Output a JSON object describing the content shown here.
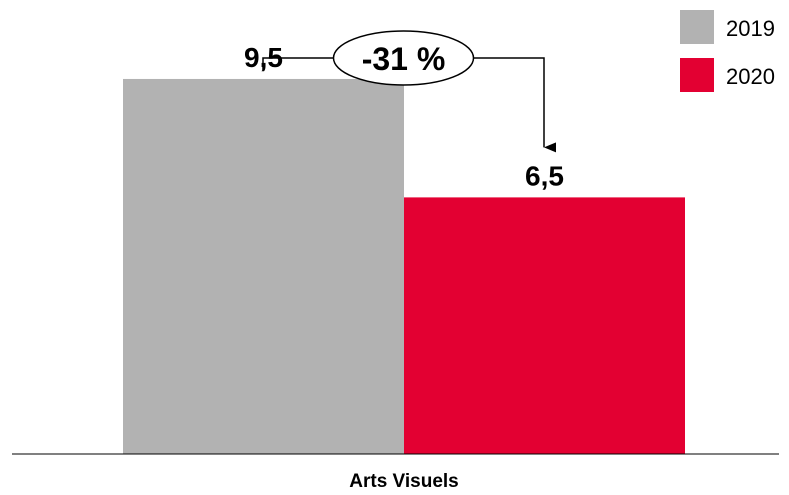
{
  "chart_data": {
    "type": "bar",
    "categories": [
      "Arts Visuels"
    ],
    "series": [
      {
        "name": "2019",
        "values": [
          9.5
        ],
        "value_label": "9,5",
        "color": "#b2b2b2"
      },
      {
        "name": "2020",
        "values": [
          6.5
        ],
        "value_label": "6,5",
        "color": "#e30032"
      }
    ],
    "title": "",
    "xlabel": "",
    "ylabel": "",
    "ylim": [
      0,
      11.5
    ],
    "grid": false,
    "legend_position": "top-right",
    "annotation": {
      "text": "-31 %",
      "from_series": "2019",
      "to_series": "2020"
    }
  }
}
